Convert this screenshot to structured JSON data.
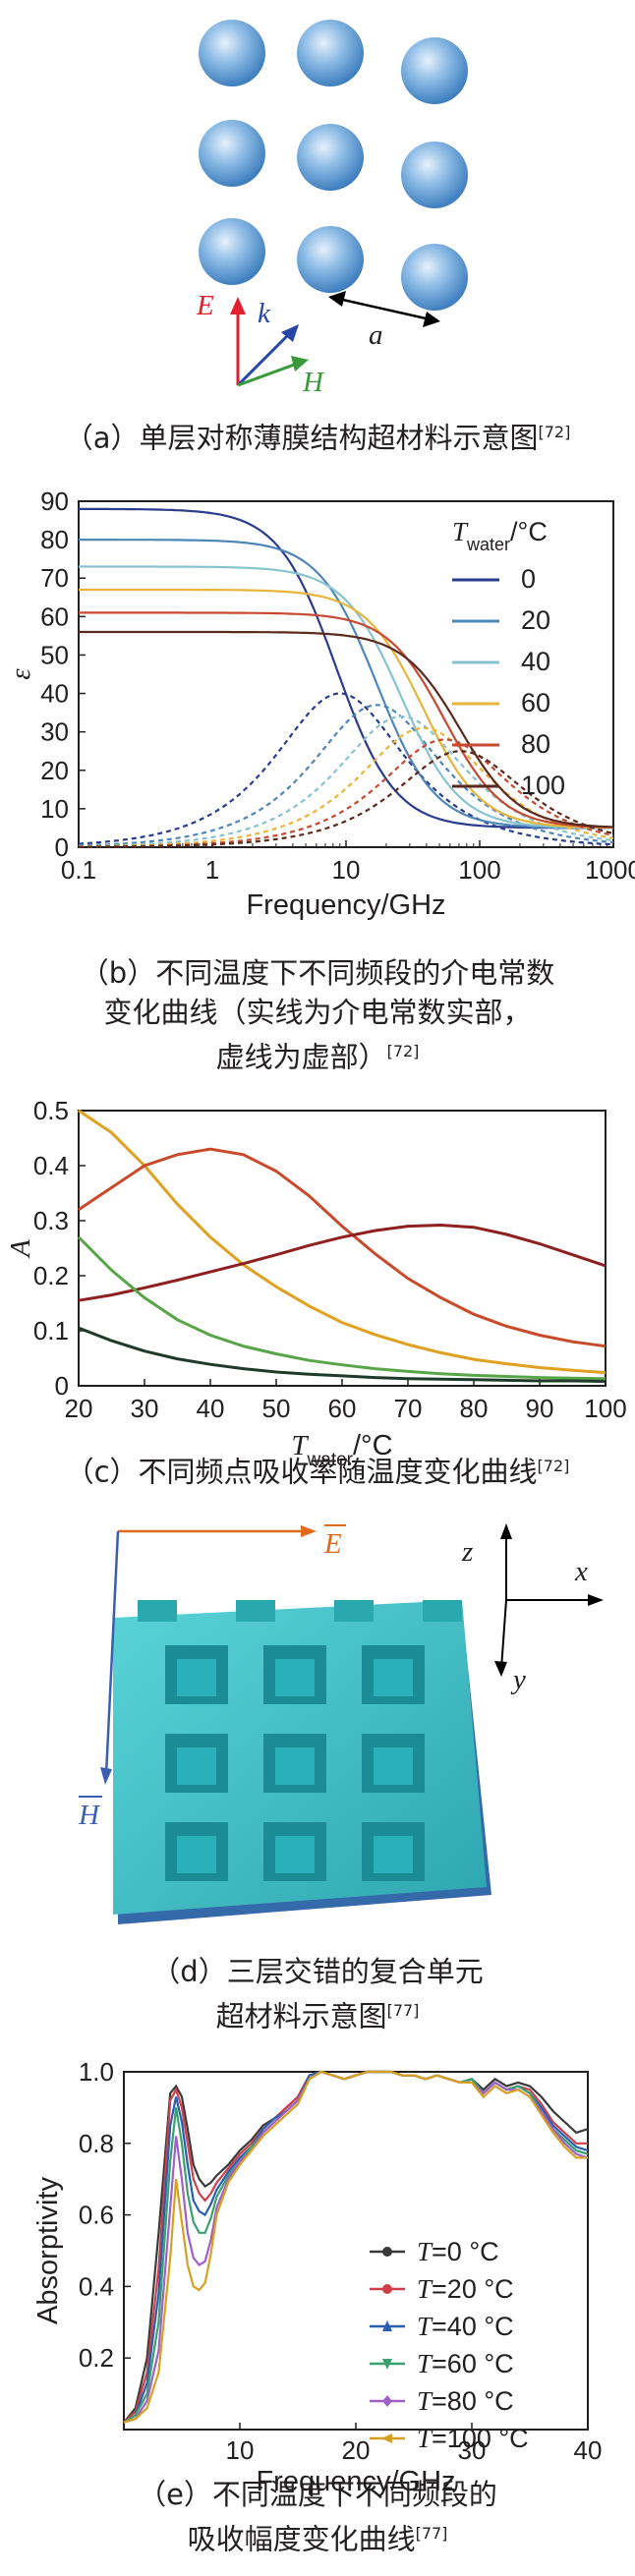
{
  "panel_a": {
    "caption_text": "（a）单层对称薄膜结构超材料示意图",
    "caption_ref": "[72]",
    "labels": {
      "E": "E",
      "k": "k",
      "H": "H",
      "a": "a"
    },
    "colors": {
      "E": "#e0202c",
      "k": "#2646a8",
      "H": "#3a9a3a",
      "sphere": "#6fa8dc"
    }
  },
  "panel_b": {
    "caption_text": "（b）不同温度下不同频段的介电常数变化曲线（实线为介电常数实部，虚线为虚部）",
    "caption_lines": [
      "（b）不同温度下不同频段的介电常数",
      "变化曲线（实线为介电常数实部，",
      "虚线为虚部）"
    ],
    "caption_ref": "[72]",
    "legend_title_sym": "T",
    "legend_title_sub": "water",
    "legend_title_unit": "/°C"
  },
  "panel_c": {
    "caption_text": "（c）不同频点吸收率随温度变化曲线",
    "caption_ref": "[72]"
  },
  "panel_d": {
    "caption_lines": [
      "（d）三层交错的复合单元",
      "超材料示意图"
    ],
    "caption_ref": "[77]",
    "labels": {
      "E": "E",
      "H": "H",
      "x": "x",
      "y": "y",
      "z": "z"
    },
    "colors": {
      "E": "#e06a1c",
      "H": "#3a5fb0",
      "block": "#3fbcc4"
    }
  },
  "panel_e": {
    "caption_lines": [
      "（e）不同温度下不同频段的",
      "吸收幅度变化曲线"
    ],
    "caption_ref": "[77]"
  },
  "chart_data": [
    {
      "id": "b",
      "type": "line",
      "xlabel": "Frequency/GHz",
      "ylabel": "ε",
      "xscale": "log",
      "xlim": [
        0.1,
        1000
      ],
      "ylim": [
        0,
        90
      ],
      "xticks": [
        "0.1",
        "1",
        "10",
        "100",
        "1000"
      ],
      "yticks": [
        "0",
        "10",
        "20",
        "30",
        "40",
        "50",
        "60",
        "70",
        "80",
        "90"
      ],
      "legend_position": "right",
      "series": [
        {
          "name": "0",
          "color": "#2a3c8c",
          "real_static": 88,
          "fc_real": 8.5,
          "imag_peak": 40,
          "imag_peak_f": 9
        },
        {
          "name": "20",
          "color": "#4f86b8",
          "real_static": 80,
          "fc_real": 17,
          "imag_peak": 37,
          "imag_peak_f": 17
        },
        {
          "name": "40",
          "color": "#87c3cf",
          "real_static": 73,
          "fc_real": 26,
          "imag_peak": 34,
          "imag_peak_f": 26
        },
        {
          "name": "60",
          "color": "#e6b53a",
          "real_static": 67,
          "fc_real": 38,
          "imag_peak": 31,
          "imag_peak_f": 38
        },
        {
          "name": "80",
          "color": "#c64a32",
          "real_static": 61,
          "fc_real": 55,
          "imag_peak": 28,
          "imag_peak_f": 55
        },
        {
          "name": "100",
          "color": "#5a2a1e",
          "real_static": 56,
          "fc_real": 72,
          "imag_peak": 25,
          "imag_peak_f": 72
        }
      ]
    },
    {
      "id": "c",
      "type": "line",
      "xlabel_sym": "T",
      "xlabel_sub": "water",
      "xlabel_unit": "/°C",
      "ylabel": "A",
      "xlim": [
        20,
        100
      ],
      "ylim": [
        0,
        0.5
      ],
      "xticks": [
        "20",
        "30",
        "40",
        "50",
        "60",
        "70",
        "80",
        "90",
        "100"
      ],
      "yticks": [
        "0",
        "0.1",
        "0.2",
        "0.3",
        "0.4",
        "0.5"
      ],
      "series": [
        {
          "color": "#e0a020",
          "x": [
            20,
            25,
            30,
            35,
            40,
            45,
            50,
            55,
            60,
            65,
            70,
            75,
            80,
            85,
            90,
            95,
            100
          ],
          "y": [
            0.5,
            0.46,
            0.4,
            0.33,
            0.27,
            0.22,
            0.18,
            0.145,
            0.115,
            0.093,
            0.075,
            0.06,
            0.048,
            0.04,
            0.033,
            0.028,
            0.024
          ]
        },
        {
          "color": "#c94a2a",
          "x": [
            20,
            25,
            30,
            35,
            40,
            45,
            50,
            55,
            60,
            65,
            70,
            75,
            80,
            85,
            90,
            95,
            100
          ],
          "y": [
            0.32,
            0.36,
            0.4,
            0.42,
            0.43,
            0.42,
            0.39,
            0.345,
            0.29,
            0.24,
            0.195,
            0.16,
            0.13,
            0.108,
            0.092,
            0.08,
            0.072
          ]
        },
        {
          "color": "#8e2020",
          "x": [
            20,
            25,
            30,
            35,
            40,
            45,
            50,
            55,
            60,
            65,
            70,
            75,
            80,
            85,
            90,
            95,
            100
          ],
          "y": [
            0.155,
            0.165,
            0.178,
            0.192,
            0.207,
            0.222,
            0.238,
            0.255,
            0.27,
            0.282,
            0.29,
            0.292,
            0.288,
            0.275,
            0.258,
            0.238,
            0.218
          ]
        },
        {
          "color": "#58a548",
          "x": [
            20,
            25,
            30,
            35,
            40,
            45,
            50,
            55,
            60,
            65,
            70,
            75,
            80,
            85,
            90,
            95,
            100
          ],
          "y": [
            0.27,
            0.21,
            0.16,
            0.12,
            0.092,
            0.072,
            0.058,
            0.046,
            0.038,
            0.031,
            0.026,
            0.022,
            0.019,
            0.017,
            0.015,
            0.014,
            0.013
          ]
        },
        {
          "color": "#1f3a2a",
          "x": [
            20,
            25,
            30,
            35,
            40,
            45,
            50,
            55,
            60,
            65,
            70,
            75,
            80,
            85,
            90,
            95,
            100
          ],
          "y": [
            0.105,
            0.082,
            0.063,
            0.049,
            0.039,
            0.031,
            0.025,
            0.021,
            0.018,
            0.015,
            0.013,
            0.012,
            0.011,
            0.01,
            0.009,
            0.009,
            0.008
          ]
        }
      ]
    },
    {
      "id": "e",
      "type": "line",
      "xlabel": "Frequency/GHz",
      "ylabel": "Absorptivity",
      "xlim": [
        0,
        40
      ],
      "ylim": [
        0,
        1.0
      ],
      "xticks": [
        "10",
        "20",
        "30",
        "40"
      ],
      "yticks": [
        "0.2",
        "0.4",
        "0.6",
        "0.8",
        "1.0"
      ],
      "legend_position": "center-right",
      "x": [
        0,
        1,
        2,
        3,
        4,
        4.5,
        5,
        5.5,
        6,
        6.5,
        7,
        7.5,
        8,
        9,
        10,
        11,
        12,
        13,
        14,
        15,
        16,
        17,
        18,
        19,
        20,
        21,
        22,
        23,
        24,
        25,
        26,
        27,
        28,
        29,
        30,
        31,
        32,
        33,
        34,
        35,
        36,
        37,
        38,
        39,
        40
      ],
      "series": [
        {
          "name_sym": "T",
          "name_rest": "=0 °C",
          "color": "#3a3a3a",
          "marker": "circle",
          "y": [
            0.02,
            0.06,
            0.2,
            0.55,
            0.94,
            0.96,
            0.93,
            0.84,
            0.74,
            0.7,
            0.68,
            0.69,
            0.71,
            0.74,
            0.78,
            0.81,
            0.85,
            0.87,
            0.9,
            0.93,
            0.99,
            1.0,
            0.99,
            0.98,
            0.99,
            1.0,
            1.0,
            1.0,
            0.99,
            0.99,
            0.98,
            0.99,
            0.98,
            0.97,
            0.98,
            0.95,
            0.98,
            0.96,
            0.97,
            0.96,
            0.93,
            0.89,
            0.86,
            0.83,
            0.84
          ]
        },
        {
          "name_sym": "T",
          "name_rest": "=20 °C",
          "color": "#d0404a",
          "marker": "circle",
          "y": [
            0.02,
            0.05,
            0.16,
            0.45,
            0.92,
            0.95,
            0.9,
            0.8,
            0.7,
            0.66,
            0.64,
            0.66,
            0.69,
            0.73,
            0.77,
            0.8,
            0.84,
            0.87,
            0.9,
            0.93,
            0.99,
            1.0,
            0.99,
            0.98,
            0.99,
            1.0,
            1.0,
            1.0,
            0.99,
            0.99,
            0.98,
            0.99,
            0.98,
            0.97,
            0.98,
            0.94,
            0.97,
            0.95,
            0.96,
            0.95,
            0.91,
            0.86,
            0.83,
            0.8,
            0.8
          ]
        },
        {
          "name_sym": "T",
          "name_rest": "=40 °C",
          "color": "#2a5fb0",
          "marker": "triangle",
          "y": [
            0.02,
            0.04,
            0.13,
            0.38,
            0.85,
            0.93,
            0.86,
            0.74,
            0.64,
            0.61,
            0.6,
            0.63,
            0.67,
            0.72,
            0.76,
            0.79,
            0.84,
            0.87,
            0.89,
            0.92,
            0.99,
            1.0,
            0.99,
            0.98,
            0.99,
            1.0,
            1.0,
            1.0,
            0.99,
            0.99,
            0.98,
            0.99,
            0.98,
            0.97,
            0.98,
            0.94,
            0.97,
            0.95,
            0.96,
            0.94,
            0.9,
            0.85,
            0.82,
            0.79,
            0.78
          ]
        },
        {
          "name_sym": "T",
          "name_rest": "=60 °C",
          "color": "#3aa070",
          "marker": "triangle-down",
          "y": [
            0.02,
            0.04,
            0.1,
            0.3,
            0.75,
            0.9,
            0.8,
            0.66,
            0.58,
            0.55,
            0.55,
            0.59,
            0.65,
            0.71,
            0.75,
            0.79,
            0.83,
            0.86,
            0.89,
            0.92,
            0.98,
            1.0,
            0.99,
            0.98,
            0.99,
            1.0,
            1.0,
            1.0,
            0.99,
            0.99,
            0.98,
            0.99,
            0.98,
            0.97,
            0.98,
            0.94,
            0.97,
            0.95,
            0.96,
            0.94,
            0.89,
            0.84,
            0.81,
            0.78,
            0.77
          ]
        },
        {
          "name_sym": "T",
          "name_rest": "=80 °C",
          "color": "#a060c8",
          "marker": "diamond",
          "y": [
            0.02,
            0.03,
            0.08,
            0.22,
            0.62,
            0.82,
            0.7,
            0.55,
            0.48,
            0.46,
            0.47,
            0.53,
            0.62,
            0.7,
            0.75,
            0.78,
            0.83,
            0.86,
            0.89,
            0.92,
            0.98,
            1.0,
            0.99,
            0.98,
            0.99,
            1.0,
            1.0,
            1.0,
            0.99,
            0.99,
            0.98,
            0.99,
            0.98,
            0.97,
            0.97,
            0.94,
            0.97,
            0.95,
            0.95,
            0.93,
            0.89,
            0.84,
            0.8,
            0.77,
            0.76
          ]
        },
        {
          "name_sym": "T",
          "name_rest": "=100 °C",
          "color": "#d8a020",
          "marker": "triangle-left",
          "y": [
            0.02,
            0.03,
            0.06,
            0.16,
            0.48,
            0.7,
            0.58,
            0.46,
            0.4,
            0.39,
            0.41,
            0.49,
            0.6,
            0.69,
            0.74,
            0.78,
            0.82,
            0.85,
            0.88,
            0.91,
            0.98,
            1.0,
            0.99,
            0.98,
            0.99,
            1.0,
            1.0,
            1.0,
            0.99,
            0.99,
            0.98,
            0.99,
            0.98,
            0.97,
            0.97,
            0.93,
            0.96,
            0.94,
            0.95,
            0.93,
            0.88,
            0.83,
            0.79,
            0.76,
            0.76
          ]
        }
      ]
    }
  ]
}
